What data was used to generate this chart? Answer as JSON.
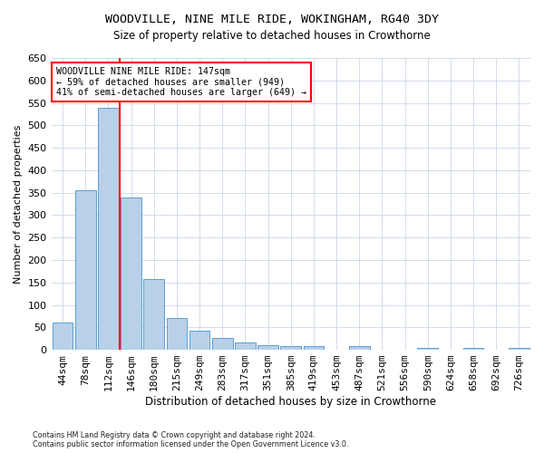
{
  "title": "WOODVILLE, NINE MILE RIDE, WOKINGHAM, RG40 3DY",
  "subtitle": "Size of property relative to detached houses in Crowthorne",
  "xlabel": "Distribution of detached houses by size in Crowthorne",
  "ylabel": "Number of detached properties",
  "bar_color": "#b8d0e8",
  "bar_edge_color": "#5a9fd4",
  "categories": [
    "44sqm",
    "78sqm",
    "112sqm",
    "146sqm",
    "180sqm",
    "215sqm",
    "249sqm",
    "283sqm",
    "317sqm",
    "351sqm",
    "385sqm",
    "419sqm",
    "453sqm",
    "487sqm",
    "521sqm",
    "556sqm",
    "590sqm",
    "624sqm",
    "658sqm",
    "692sqm",
    "726sqm"
  ],
  "values": [
    60,
    355,
    540,
    340,
    157,
    70,
    43,
    26,
    16,
    10,
    8,
    8,
    0,
    8,
    0,
    0,
    5,
    0,
    5,
    0,
    5
  ],
  "annotation_line1": "WOODVILLE NINE MILE RIDE: 147sqm",
  "annotation_line2": "← 59% of detached houses are smaller (949)",
  "annotation_line3": "41% of semi-detached houses are larger (649) →",
  "vline_position": 2.5,
  "ylim_max": 650,
  "ytick_step": 50,
  "footnote_line1": "Contains HM Land Registry data © Crown copyright and database right 2024.",
  "footnote_line2": "Contains public sector information licensed under the Open Government Licence v3.0.",
  "bg_color": "#ffffff",
  "grid_color": "#ccd6e8"
}
